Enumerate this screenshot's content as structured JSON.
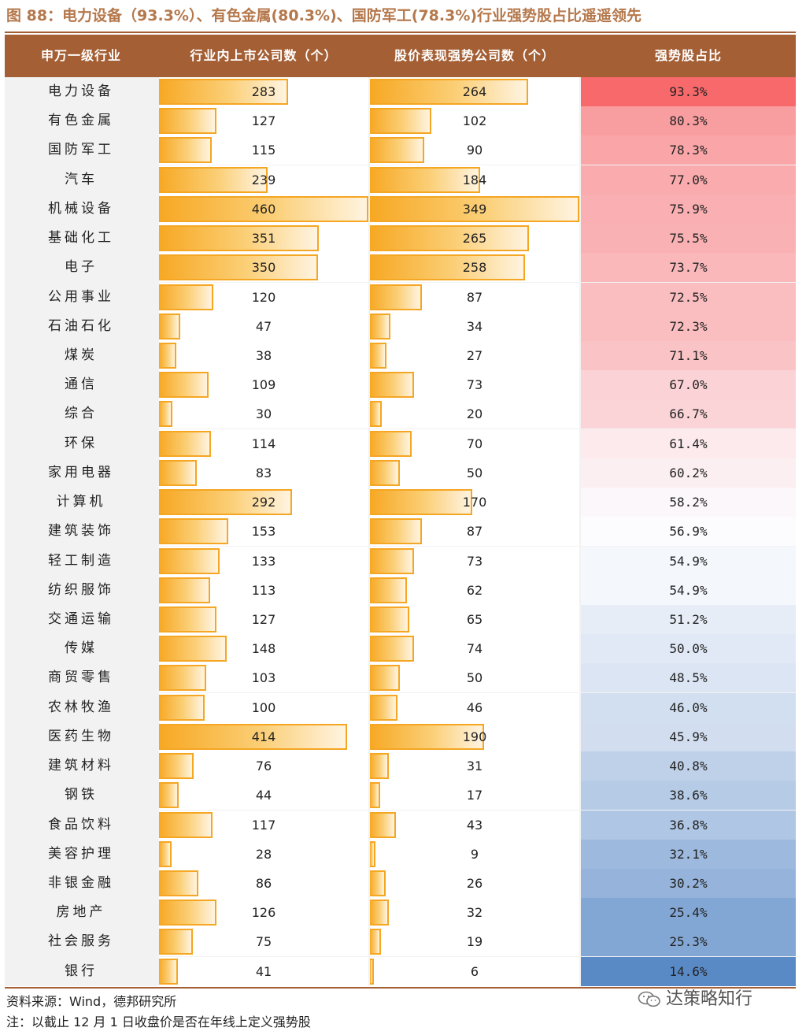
{
  "title": "图 88：电力设备（93.3%）、有色金属(80.3%)、国防军工(78.3%)行业强势股占比遥遥领先",
  "colors": {
    "header_bg": "#a45f35",
    "bar": "#f5a623",
    "high": "#f8696b",
    "mid": "#fcfcff",
    "low": "#5a8ac6"
  },
  "chart_data": {
    "type": "table",
    "columns": [
      "申万一级行业",
      "行业内上市公司数（个）",
      "股价表现强势公司数（个）",
      "强势股占比"
    ],
    "rows": [
      {
        "industry": "电力设备",
        "listed": 283,
        "strong": 264,
        "ratio": "93.3%"
      },
      {
        "industry": "有色金属",
        "listed": 127,
        "strong": 102,
        "ratio": "80.3%"
      },
      {
        "industry": "国防军工",
        "listed": 115,
        "strong": 90,
        "ratio": "78.3%"
      },
      {
        "industry": "汽车",
        "listed": 239,
        "strong": 184,
        "ratio": "77.0%"
      },
      {
        "industry": "机械设备",
        "listed": 460,
        "strong": 349,
        "ratio": "75.9%"
      },
      {
        "industry": "基础化工",
        "listed": 351,
        "strong": 265,
        "ratio": "75.5%"
      },
      {
        "industry": "电子",
        "listed": 350,
        "strong": 258,
        "ratio": "73.7%"
      },
      {
        "industry": "公用事业",
        "listed": 120,
        "strong": 87,
        "ratio": "72.5%"
      },
      {
        "industry": "石油石化",
        "listed": 47,
        "strong": 34,
        "ratio": "72.3%"
      },
      {
        "industry": "煤炭",
        "listed": 38,
        "strong": 27,
        "ratio": "71.1%"
      },
      {
        "industry": "通信",
        "listed": 109,
        "strong": 73,
        "ratio": "67.0%"
      },
      {
        "industry": "综合",
        "listed": 30,
        "strong": 20,
        "ratio": "66.7%"
      },
      {
        "industry": "环保",
        "listed": 114,
        "strong": 70,
        "ratio": "61.4%"
      },
      {
        "industry": "家用电器",
        "listed": 83,
        "strong": 50,
        "ratio": "60.2%"
      },
      {
        "industry": "计算机",
        "listed": 292,
        "strong": 170,
        "ratio": "58.2%"
      },
      {
        "industry": "建筑装饰",
        "listed": 153,
        "strong": 87,
        "ratio": "56.9%"
      },
      {
        "industry": "轻工制造",
        "listed": 133,
        "strong": 73,
        "ratio": "54.9%"
      },
      {
        "industry": "纺织服饰",
        "listed": 113,
        "strong": 62,
        "ratio": "54.9%"
      },
      {
        "industry": "交通运输",
        "listed": 127,
        "strong": 65,
        "ratio": "51.2%"
      },
      {
        "industry": "传媒",
        "listed": 148,
        "strong": 74,
        "ratio": "50.0%"
      },
      {
        "industry": "商贸零售",
        "listed": 103,
        "strong": 50,
        "ratio": "48.5%"
      },
      {
        "industry": "农林牧渔",
        "listed": 100,
        "strong": 46,
        "ratio": "46.0%"
      },
      {
        "industry": "医药生物",
        "listed": 414,
        "strong": 190,
        "ratio": "45.9%"
      },
      {
        "industry": "建筑材料",
        "listed": 76,
        "strong": 31,
        "ratio": "40.8%"
      },
      {
        "industry": "钢铁",
        "listed": 44,
        "strong": 17,
        "ratio": "38.6%"
      },
      {
        "industry": "食品饮料",
        "listed": 117,
        "strong": 43,
        "ratio": "36.8%"
      },
      {
        "industry": "美容护理",
        "listed": 28,
        "strong": 9,
        "ratio": "32.1%"
      },
      {
        "industry": "非银金融",
        "listed": 86,
        "strong": 26,
        "ratio": "30.2%"
      },
      {
        "industry": "房地产",
        "listed": 126,
        "strong": 32,
        "ratio": "25.4%"
      },
      {
        "industry": "社会服务",
        "listed": 75,
        "strong": 19,
        "ratio": "25.3%"
      },
      {
        "industry": "银行",
        "listed": 41,
        "strong": 6,
        "ratio": "14.6%"
      }
    ]
  },
  "footer": {
    "source": "资料来源：Wind，德邦研究所",
    "note": "注：以截止 12 月 1 日收盘价是否在年线上定义强势股"
  },
  "watermark": {
    "icon": "wechat-icon",
    "text": "达策略知行"
  }
}
